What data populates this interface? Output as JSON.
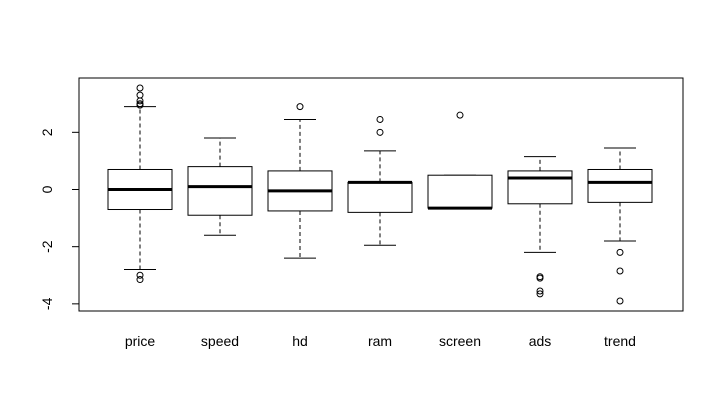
{
  "chart_data": {
    "type": "boxplot",
    "title": "",
    "xlabel": "",
    "ylabel": "",
    "ylim": [
      -4.25,
      3.9
    ],
    "yticks": [
      -4,
      -2,
      0,
      2
    ],
    "ytick_labels": [
      "-4",
      "-2",
      "0",
      "2"
    ],
    "categories": [
      "price",
      "speed",
      "hd",
      "ram",
      "screen",
      "ads",
      "trend"
    ],
    "boxes": [
      {
        "name": "price",
        "lower_whisker": -2.8,
        "q1": -0.7,
        "median": 0.0,
        "q3": 0.7,
        "upper_whisker": 2.9,
        "outliers": [
          3.55,
          3.3,
          3.1,
          3.0,
          2.95,
          -3.0,
          -3.15
        ]
      },
      {
        "name": "speed",
        "lower_whisker": -1.6,
        "q1": -0.9,
        "median": 0.1,
        "q3": 0.8,
        "upper_whisker": 1.8,
        "outliers": []
      },
      {
        "name": "hd",
        "lower_whisker": -2.4,
        "q1": -0.75,
        "median": -0.05,
        "q3": 0.65,
        "upper_whisker": 2.45,
        "outliers": [
          2.9
        ]
      },
      {
        "name": "ram",
        "lower_whisker": -1.95,
        "q1": -0.8,
        "median": 0.25,
        "q3": 0.25,
        "upper_whisker": 1.35,
        "outliers": [
          2.45,
          2.0
        ]
      },
      {
        "name": "screen",
        "lower_whisker": -0.65,
        "q1": -0.65,
        "median": -0.65,
        "q3": 0.5,
        "upper_whisker": 0.5,
        "outliers": [
          2.6
        ]
      },
      {
        "name": "ads",
        "lower_whisker": -2.2,
        "q1": -0.5,
        "median": 0.4,
        "q3": 0.65,
        "upper_whisker": 1.15,
        "outliers": [
          -3.05,
          -3.1,
          -3.55,
          -3.65
        ]
      },
      {
        "name": "trend",
        "lower_whisker": -1.8,
        "q1": -0.45,
        "median": 0.25,
        "q3": 0.7,
        "upper_whisker": 1.45,
        "outliers": [
          -2.2,
          -2.85,
          -3.9
        ]
      }
    ]
  }
}
